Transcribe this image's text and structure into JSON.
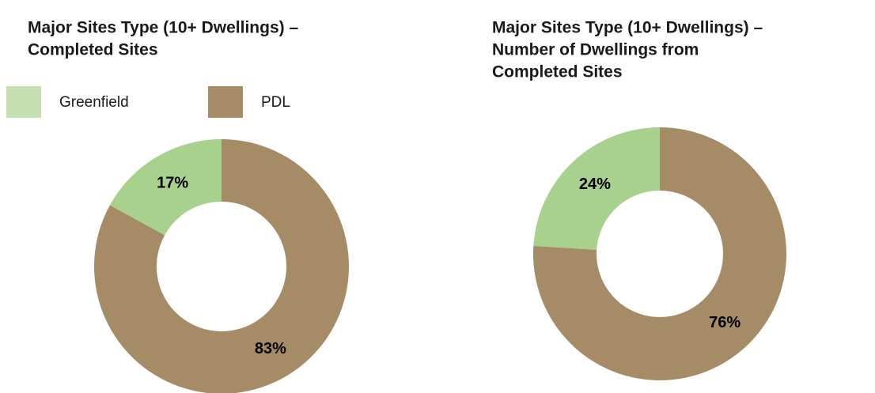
{
  "chart_data": [
    {
      "type": "donut",
      "title": [
        "Major Sites Type (10+ Dwellings) –",
        "Completed Sites"
      ],
      "categories": [
        "Greenfield",
        "PDL"
      ],
      "values": [
        17,
        83
      ],
      "value_labels": [
        "17%",
        "83%"
      ],
      "colors": [
        "#a9d18e",
        "#a68b67"
      ],
      "legend_colors": [
        "#c6e0b4",
        "#a68b67"
      ],
      "legend": true
    },
    {
      "type": "donut",
      "title": [
        "Major Sites Type (10+ Dwellings) –",
        "Number of Dwellings from",
        "Completed Sites"
      ],
      "values": [
        24,
        76
      ],
      "value_labels": [
        "24%",
        "76%"
      ],
      "colors": [
        "#a9d18e",
        "#a68b67"
      ],
      "legend": false
    }
  ]
}
